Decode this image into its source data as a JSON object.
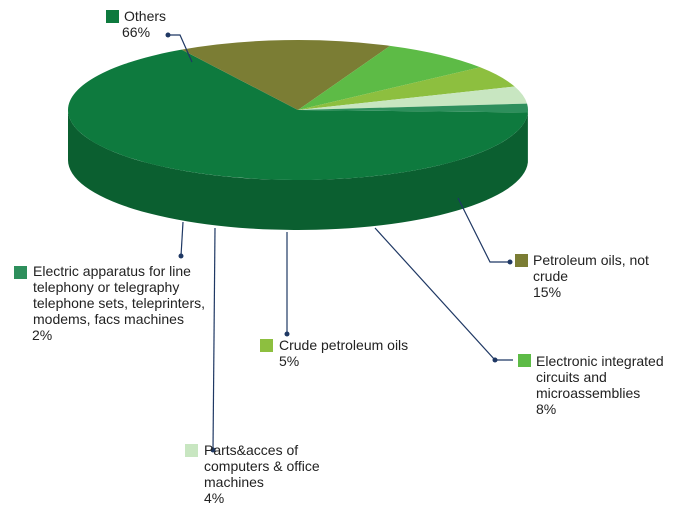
{
  "chart_data": {
    "type": "pie",
    "categories": [
      "Others",
      "Petroleum oils, not crude",
      "Electronic integrated circuits and microassemblies",
      "Crude petroleum oils",
      "Parts&acces of computers & office machines",
      "Electric apparatus for line telephony or telegraphy telephone sets, teleprinters, modems, facs machines"
    ],
    "values": [
      66,
      15,
      8,
      5,
      4,
      2
    ],
    "value_labels": [
      "66%",
      "15%",
      "8%",
      "5%",
      "4%",
      "2%"
    ],
    "colors": [
      "#0e7a3e",
      "#7b7d34",
      "#5dbb46",
      "#8dbf3f",
      "#c8e6c1",
      "#2e8f5c"
    ]
  }
}
